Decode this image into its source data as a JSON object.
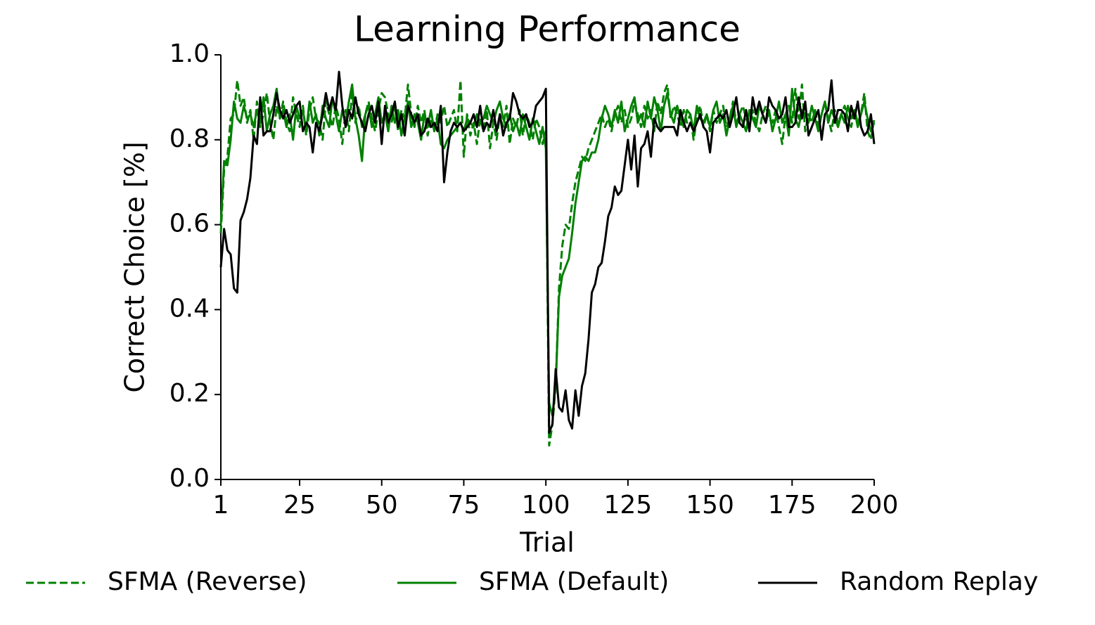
{
  "chart_data": {
    "type": "line",
    "title": "Learning Performance",
    "x_label": "Trial",
    "y_label": "Correct Choice [%]",
    "xlim": [
      1,
      200
    ],
    "xticks": [
      1,
      25,
      50,
      75,
      100,
      125,
      150,
      175,
      200
    ],
    "ylim": [
      0,
      1
    ],
    "yticks": [
      {
        "value": 0,
        "label": "0.0"
      },
      0.2,
      0.4,
      0.6,
      0.8,
      {
        "value": 1,
        "label": "1.0"
      }
    ],
    "legend": "bottom",
    "x": [
      1,
      2,
      3,
      4,
      5,
      6,
      7,
      8,
      9,
      10,
      11,
      12,
      13,
      14,
      15,
      16,
      17,
      18,
      19,
      20,
      21,
      22,
      23,
      24,
      25,
      26,
      27,
      28,
      29,
      30,
      31,
      32,
      33,
      34,
      35,
      36,
      37,
      38,
      39,
      40,
      41,
      42,
      43,
      44,
      45,
      46,
      47,
      48,
      49,
      50,
      51,
      52,
      53,
      54,
      55,
      56,
      57,
      58,
      59,
      60,
      61,
      62,
      63,
      64,
      65,
      66,
      67,
      68,
      69,
      70,
      71,
      72,
      73,
      74,
      75,
      76,
      77,
      78,
      79,
      80,
      81,
      82,
      83,
      84,
      85,
      86,
      87,
      88,
      89,
      90,
      91,
      92,
      93,
      94,
      95,
      96,
      97,
      98,
      99,
      100,
      101,
      102,
      103,
      104,
      105,
      106,
      107,
      108,
      109,
      110,
      111,
      112,
      113,
      114,
      115,
      116,
      117,
      118,
      119,
      120,
      121,
      122,
      123,
      124,
      125,
      126,
      127,
      128,
      129,
      130,
      131,
      132,
      133,
      134,
      135,
      136,
      137,
      138,
      139,
      140,
      141,
      142,
      143,
      144,
      145,
      146,
      147,
      148,
      149,
      150,
      151,
      152,
      153,
      154,
      155,
      156,
      157,
      158,
      159,
      160,
      161,
      162,
      163,
      164,
      165,
      166,
      167,
      168,
      169,
      170,
      171,
      172,
      173,
      174,
      175,
      176,
      177,
      178,
      179,
      180,
      181,
      182,
      183,
      184,
      185,
      186,
      187,
      188,
      189,
      190,
      191,
      192,
      193,
      194,
      195,
      196,
      197,
      198,
      199,
      200
    ],
    "series": [
      {
        "name": "SFMA (Reverse)",
        "color": "#008000",
        "linestyle": "dashed",
        "values": [
          0.58,
          0.73,
          0.76,
          0.85,
          0.86,
          0.94,
          0.88,
          0.9,
          0.84,
          0.87,
          0.8,
          0.89,
          0.83,
          0.86,
          0.91,
          0.84,
          0.8,
          0.88,
          0.85,
          0.89,
          0.84,
          0.82,
          0.9,
          0.86,
          0.83,
          0.88,
          0.81,
          0.87,
          0.9,
          0.85,
          0.84,
          0.8,
          0.89,
          0.86,
          0.83,
          0.88,
          0.85,
          0.79,
          0.87,
          0.82,
          0.91,
          0.84,
          0.88,
          0.83,
          0.86,
          0.89,
          0.85,
          0.82,
          0.87,
          0.91,
          0.9,
          0.86,
          0.84,
          0.88,
          0.82,
          0.87,
          0.85,
          0.93,
          0.86,
          0.83,
          0.88,
          0.84,
          0.87,
          0.81,
          0.85,
          0.82,
          0.86,
          0.84,
          0.88,
          0.83,
          0.85,
          0.87,
          0.82,
          0.94,
          0.76,
          0.86,
          0.81,
          0.84,
          0.79,
          0.85,
          0.82,
          0.87,
          0.78,
          0.84,
          0.8,
          0.86,
          0.83,
          0.88,
          0.79,
          0.85,
          0.83,
          0.87,
          0.81,
          0.86,
          0.84,
          0.8,
          0.85,
          0.83,
          0.79,
          0.82,
          0.08,
          0.13,
          0.22,
          0.45,
          0.55,
          0.6,
          0.59,
          0.65,
          0.7,
          0.73,
          0.76,
          0.75,
          0.78,
          0.8,
          0.82,
          0.84,
          0.86,
          0.83,
          0.85,
          0.82,
          0.86,
          0.88,
          0.84,
          0.87,
          0.83,
          0.85,
          0.89,
          0.86,
          0.83,
          0.88,
          0.85,
          0.87,
          0.82,
          0.89,
          0.86,
          0.91,
          0.93,
          0.85,
          0.88,
          0.86,
          0.83,
          0.87,
          0.84,
          0.86,
          0.8,
          0.85,
          0.88,
          0.83,
          0.86,
          0.82,
          0.87,
          0.84,
          0.86,
          0.88,
          0.83,
          0.85,
          0.89,
          0.84,
          0.86,
          0.88,
          0.85,
          0.83,
          0.87,
          0.84,
          0.82,
          0.86,
          0.88,
          0.85,
          0.84,
          0.87,
          0.83,
          0.79,
          0.86,
          0.88,
          0.84,
          0.92,
          0.85,
          0.93,
          0.82,
          0.86,
          0.84,
          0.87,
          0.83,
          0.86,
          0.89,
          0.85,
          0.82,
          0.87,
          0.84,
          0.86,
          0.88,
          0.85,
          0.83,
          0.87,
          0.84,
          0.86,
          0.91,
          0.82,
          0.8,
          0.85
        ]
      },
      {
        "name": "SFMA (Default)",
        "color": "#008000",
        "linestyle": "solid",
        "values": [
          0.6,
          0.75,
          0.74,
          0.8,
          0.89,
          0.85,
          0.84,
          0.88,
          0.85,
          0.86,
          0.83,
          0.87,
          0.84,
          0.9,
          0.82,
          0.86,
          0.88,
          0.92,
          0.85,
          0.87,
          0.83,
          0.86,
          0.8,
          0.88,
          0.85,
          0.87,
          0.82,
          0.89,
          0.84,
          0.86,
          0.81,
          0.88,
          0.85,
          0.83,
          0.9,
          0.86,
          0.82,
          0.87,
          0.84,
          0.89,
          0.93,
          0.85,
          0.81,
          0.75,
          0.86,
          0.88,
          0.83,
          0.86,
          0.9,
          0.84,
          0.86,
          0.82,
          0.88,
          0.84,
          0.87,
          0.81,
          0.85,
          0.89,
          0.83,
          0.86,
          0.84,
          0.8,
          0.86,
          0.83,
          0.87,
          0.82,
          0.85,
          0.79,
          0.78,
          0.8,
          0.81,
          0.82,
          0.83,
          0.84,
          0.82,
          0.85,
          0.84,
          0.83,
          0.86,
          0.84,
          0.85,
          0.88,
          0.86,
          0.84,
          0.87,
          0.89,
          0.85,
          0.83,
          0.86,
          0.82,
          0.84,
          0.81,
          0.86,
          0.83,
          0.8,
          0.85,
          0.82,
          0.79,
          0.83,
          0.78,
          0.18,
          0.15,
          0.22,
          0.43,
          0.48,
          0.5,
          0.52,
          0.58,
          0.65,
          0.7,
          0.75,
          0.76,
          0.75,
          0.77,
          0.77,
          0.8,
          0.85,
          0.88,
          0.86,
          0.83,
          0.87,
          0.84,
          0.89,
          0.82,
          0.85,
          0.88,
          0.9,
          0.84,
          0.86,
          0.83,
          0.89,
          0.85,
          0.9,
          0.87,
          0.82,
          0.88,
          0.91,
          0.86,
          0.84,
          0.88,
          0.85,
          0.83,
          0.87,
          0.86,
          0.82,
          0.88,
          0.85,
          0.84,
          0.86,
          0.83,
          0.87,
          0.89,
          0.84,
          0.86,
          0.81,
          0.85,
          0.88,
          0.83,
          0.86,
          0.84,
          0.82,
          0.87,
          0.85,
          0.83,
          0.88,
          0.86,
          0.84,
          0.87,
          0.82,
          0.85,
          0.89,
          0.84,
          0.86,
          0.81,
          0.92,
          0.85,
          0.83,
          0.87,
          0.86,
          0.84,
          0.88,
          0.85,
          0.82,
          0.86,
          0.89,
          0.84,
          0.87,
          0.85,
          0.83,
          0.86,
          0.84,
          0.88,
          0.85,
          0.87,
          0.83,
          0.86,
          0.89,
          0.85,
          0.82,
          0.84
        ]
      },
      {
        "name": "Random Replay",
        "color": "#000000",
        "linestyle": "solid",
        "values": [
          0.5,
          0.59,
          0.54,
          0.53,
          0.45,
          0.44,
          0.61,
          0.63,
          0.66,
          0.71,
          0.81,
          0.79,
          0.9,
          0.81,
          0.82,
          0.82,
          0.86,
          0.91,
          0.87,
          0.85,
          0.87,
          0.84,
          0.86,
          0.88,
          0.89,
          0.82,
          0.84,
          0.83,
          0.77,
          0.84,
          0.82,
          0.86,
          0.91,
          0.87,
          0.9,
          0.87,
          0.96,
          0.88,
          0.83,
          0.87,
          0.85,
          0.9,
          0.86,
          0.84,
          0.82,
          0.86,
          0.88,
          0.84,
          0.89,
          0.79,
          0.88,
          0.84,
          0.86,
          0.89,
          0.83,
          0.86,
          0.81,
          0.88,
          0.86,
          0.84,
          0.86,
          0.81,
          0.82,
          0.85,
          0.83,
          0.84,
          0.82,
          0.88,
          0.7,
          0.77,
          0.82,
          0.84,
          0.83,
          0.84,
          0.82,
          0.83,
          0.84,
          0.86,
          0.83,
          0.88,
          0.82,
          0.84,
          0.83,
          0.87,
          0.82,
          0.86,
          0.81,
          0.84,
          0.85,
          0.91,
          0.89,
          0.86,
          0.85,
          0.86,
          0.83,
          0.84,
          0.88,
          0.89,
          0.9,
          0.92,
          0.11,
          0.13,
          0.26,
          0.17,
          0.16,
          0.21,
          0.14,
          0.12,
          0.21,
          0.15,
          0.22,
          0.25,
          0.33,
          0.44,
          0.46,
          0.5,
          0.51,
          0.56,
          0.62,
          0.64,
          0.69,
          0.67,
          0.68,
          0.74,
          0.8,
          0.73,
          0.81,
          0.69,
          0.78,
          0.79,
          0.82,
          0.76,
          0.85,
          0.83,
          0.82,
          0.83,
          0.83,
          0.83,
          0.83,
          0.81,
          0.87,
          0.84,
          0.82,
          0.84,
          0.82,
          0.84,
          0.86,
          0.83,
          0.82,
          0.77,
          0.84,
          0.85,
          0.86,
          0.85,
          0.87,
          0.83,
          0.86,
          0.9,
          0.84,
          0.83,
          0.87,
          0.82,
          0.9,
          0.86,
          0.89,
          0.86,
          0.84,
          0.9,
          0.88,
          0.87,
          0.85,
          0.86,
          0.9,
          0.83,
          0.83,
          0.84,
          0.9,
          0.85,
          0.89,
          0.81,
          0.83,
          0.85,
          0.87,
          0.8,
          0.86,
          0.87,
          0.94,
          0.84,
          0.87,
          0.87,
          0.86,
          0.82,
          0.88,
          0.85,
          0.89,
          0.83,
          0.81,
          0.82,
          0.86,
          0.79
        ]
      }
    ]
  }
}
